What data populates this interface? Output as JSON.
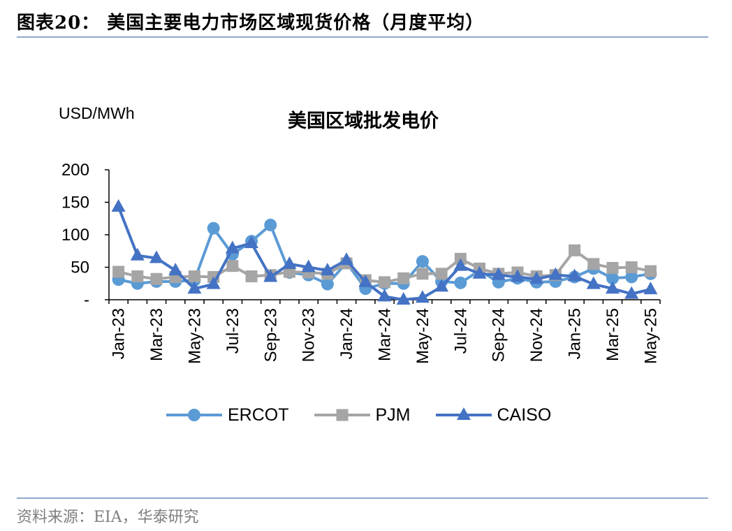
{
  "figure_title": "图表20：  美国主要电力市场区域现货价格（月度平均）",
  "source": "资料来源：EIA，华泰研究",
  "colors": {
    "ERCOT": "#5b9bd5",
    "PJM": "#a5a5a5",
    "CAISO": "#4472c4",
    "rule": "#8ea9c9"
  },
  "chart_data": {
    "type": "line",
    "title": "美国区域批发电价",
    "ylabel": "USD/MWh",
    "ylim": [
      0,
      200
    ],
    "yticks": [
      0,
      50,
      100,
      150,
      200
    ],
    "ytick_labels": [
      "-",
      "50",
      "100",
      "150",
      "200"
    ],
    "x": [
      "Jan-23",
      "Feb-23",
      "Mar-23",
      "Apr-23",
      "May-23",
      "Jun-23",
      "Jul-23",
      "Aug-23",
      "Sep-23",
      "Oct-23",
      "Nov-23",
      "Dec-23",
      "Jan-24",
      "Feb-24",
      "Mar-24",
      "Apr-24",
      "May-24",
      "Jun-24",
      "Jul-24",
      "Aug-24",
      "Sep-24",
      "Oct-24",
      "Nov-24",
      "Dec-24",
      "Jan-25",
      "Feb-25",
      "Mar-25",
      "Apr-25",
      "May-25"
    ],
    "xtick_labels": [
      "Jan-23",
      "Mar-23",
      "May-23",
      "Jul-23",
      "Sep-23",
      "Nov-23",
      "Jan-24",
      "Mar-24",
      "May-24",
      "Jul-24",
      "Sep-24",
      "Nov-24",
      "Jan-25",
      "Mar-25",
      "May-25"
    ],
    "legend_position": "bottom",
    "grid": false,
    "series": [
      {
        "name": "ERCOT",
        "marker": "circle",
        "values": [
          31,
          25,
          28,
          28,
          30,
          110,
          70,
          90,
          115,
          42,
          38,
          24,
          57,
          17,
          25,
          25,
          59,
          28,
          26,
          45,
          27,
          33,
          27,
          28,
          35,
          48,
          33,
          35,
          40
        ]
      },
      {
        "name": "PJM",
        "marker": "square",
        "values": [
          43,
          36,
          32,
          35,
          36,
          35,
          52,
          36,
          38,
          43,
          42,
          40,
          56,
          30,
          27,
          33,
          40,
          40,
          63,
          48,
          40,
          42,
          36,
          38,
          76,
          55,
          49,
          50,
          44
        ]
      },
      {
        "name": "CAISO",
        "marker": "triangle",
        "values": [
          143,
          68,
          64,
          45,
          17,
          24,
          79,
          87,
          35,
          55,
          50,
          45,
          61,
          27,
          5,
          0,
          3,
          20,
          52,
          40,
          38,
          35,
          32,
          38,
          36,
          24,
          17,
          9,
          16
        ]
      }
    ]
  }
}
